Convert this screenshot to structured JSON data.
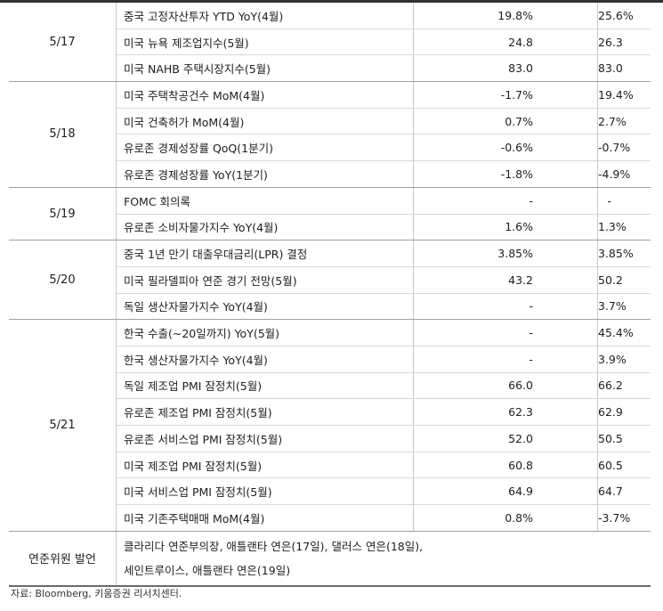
{
  "rows": [
    {
      "indicator": "중국 고정자산투자 YTD YoY(4월)",
      "previous": "19.8%",
      "consensus": "25.6%"
    },
    {
      "indicator": "미국 뉴욕 제조업지수(5월)",
      "previous": "24.8",
      "consensus": "26.3"
    },
    {
      "indicator": "미국 NAHB 주택시장지수(5월)",
      "previous": "83.0",
      "consensus": "83.0"
    },
    {
      "indicator": "미국 주택착공건수 MoM(4월)",
      "previous": "-1.7%",
      "consensus": "19.4%"
    },
    {
      "indicator": "미국 건축허가 MoM(4월)",
      "previous": "0.7%",
      "consensus": "2.7%"
    },
    {
      "indicator": "유로존 경제성장률 QoQ(1분기)",
      "previous": "-0.6%",
      "consensus": "-0.7%"
    },
    {
      "indicator": "유로존 경제성장률 YoY(1분기)",
      "previous": "-1.8%",
      "consensus": "-4.9%"
    },
    {
      "indicator": "FOMC 회의록",
      "previous": "-",
      "consensus": "-"
    },
    {
      "indicator": "유로존 소비자물가지수 YoY(4월)",
      "previous": "1.6%",
      "consensus": "1.3%"
    },
    {
      "indicator": "중국 1년 만기 대출우대금리(LPR) 결정",
      "previous": "3.85%",
      "consensus": "3.85%"
    },
    {
      "indicator": "미국 필라델피아 연준 경기 전망(5월)",
      "previous": "43.2",
      "consensus": "50.2"
    },
    {
      "indicator": "독일 생산자물가지수 YoY(4월)",
      "previous": "-",
      "consensus": "3.7%"
    },
    {
      "indicator": "한국 수출(~20일까지) YoY(5월)",
      "previous": "-",
      "consensus": "45.4%"
    },
    {
      "indicator": "한국 생산자물가지수 YoY(4월)",
      "previous": "-",
      "consensus": "3.9%"
    },
    {
      "indicator": "독일 제조업 PMI 잠정치(5월)",
      "previous": "66.0",
      "consensus": "66.2"
    },
    {
      "indicator": "유로존 제조업 PMI 잠정치(5월)",
      "previous": "62.3",
      "consensus": "62.9"
    },
    {
      "indicator": "유로존 서비스업 PMI 잠정치(5월)",
      "previous": "52.0",
      "consensus": "50.5"
    },
    {
      "indicator": "미국 제조업 PMI 잠정치(5월)",
      "previous": "60.8",
      "consensus": "60.5"
    },
    {
      "indicator": "미국 서비스업 PMI 잠정치(5월)",
      "previous": "64.9",
      "consensus": "64.7"
    },
    {
      "indicator": "미국 기존주택매매 MoM(4월)",
      "previous": "0.8%",
      "consensus": "-3.7%"
    }
  ],
  "dates": [
    "5/17",
    "5/18",
    "5/19",
    "5/20",
    "5/21"
  ],
  "fed": {
    "label": "연준위원 발언",
    "line1": "클라리다 연준부의장, 애틀랜타 연은(17일), 댈러스 연은(18일),",
    "line2": "세인트루이스, 애틀랜타 연은(19일)"
  },
  "source": "자료: Bloomberg, 키움증권 리서치센터."
}
